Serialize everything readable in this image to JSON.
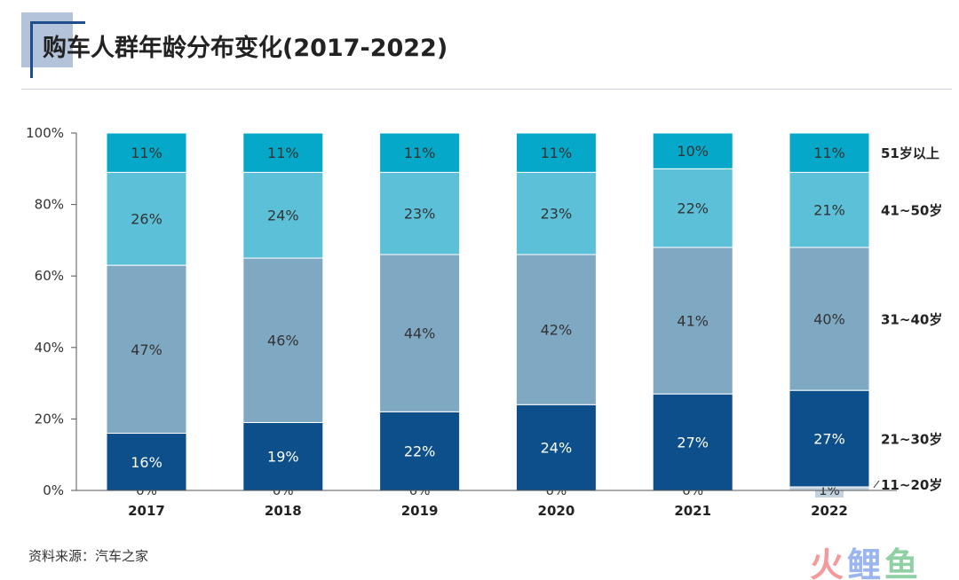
{
  "title": "购车人群年龄分布变化(2017-2022)",
  "source": "资料来源：汽车之家",
  "watermark": [
    "火",
    "鲤",
    "鱼"
  ],
  "chart_data": {
    "type": "bar",
    "stacked": true,
    "categories": [
      "2017",
      "2018",
      "2019",
      "2020",
      "2021",
      "2022"
    ],
    "ylim": [
      0,
      100
    ],
    "yticks": [
      "0%",
      "20%",
      "40%",
      "60%",
      "80%",
      "100%"
    ],
    "grid": false,
    "legend_placement": "right",
    "series": [
      {
        "name": "11~20岁",
        "values": [
          0,
          0,
          0,
          0,
          0,
          1
        ],
        "color": "#c3d2df"
      },
      {
        "name": "21~30岁",
        "values": [
          16,
          19,
          22,
          24,
          27,
          27
        ],
        "color": "#0d4f8b"
      },
      {
        "name": "31~40岁",
        "values": [
          47,
          46,
          44,
          42,
          41,
          40
        ],
        "color": "#7fa8c3"
      },
      {
        "name": "41~50岁",
        "values": [
          26,
          24,
          23,
          23,
          22,
          21
        ],
        "color": "#5bc0d8"
      },
      {
        "name": "51岁以上",
        "values": [
          11,
          11,
          11,
          11,
          10,
          11
        ],
        "color": "#05a8c8"
      }
    ]
  }
}
